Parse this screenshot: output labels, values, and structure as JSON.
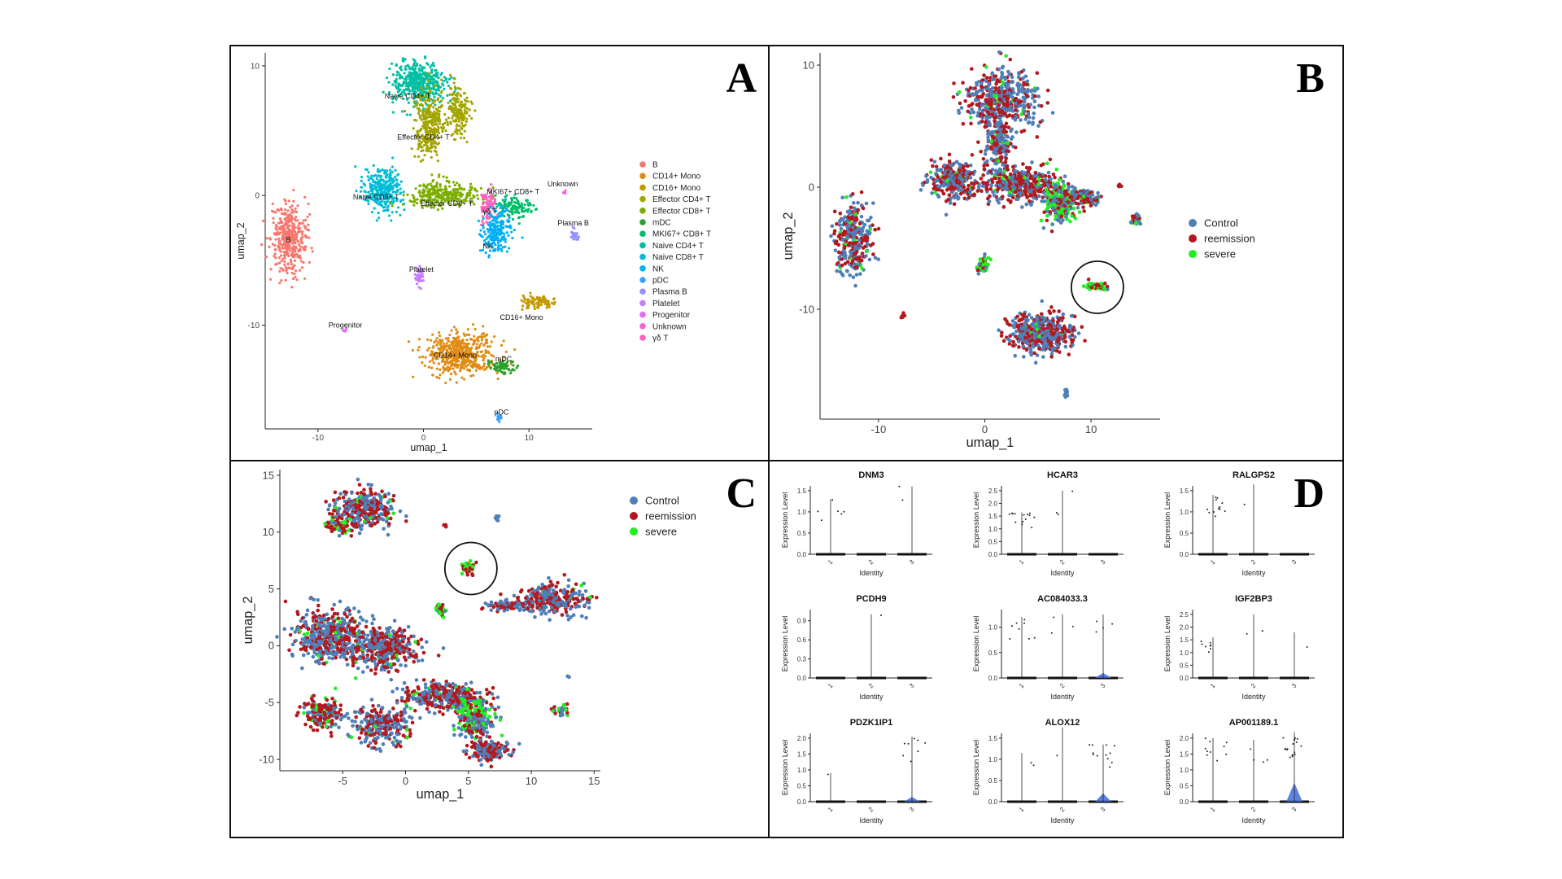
{
  "panel_letters": {
    "A": "A",
    "B": "B",
    "C": "C",
    "D": "D"
  },
  "colors": {
    "control": "#4f7fb8",
    "reemission": "#b2191e",
    "severe": "#22ee22",
    "clusters": {
      "B": "#f8766d",
      "CD14+ Mono": "#e08b14",
      "CD16+ Mono": "#c49a00",
      "Effector CD4+ T": "#a3a500",
      "Effector CD8+ T": "#7cae00",
      "mDC": "#2aa12a",
      "MKI67+ CD8+ T": "#00be67",
      "Naive CD4+ T": "#00bfa2",
      "Naive CD8+ T": "#00bcd8",
      "NK": "#00b0f6",
      "pDC": "#35a2ff",
      "Plasma B": "#9590ff",
      "Platelet": "#c77cff",
      "Progenitor": "#e76bf3",
      "Unknown": "#fa62db",
      "γδ T": "#ff62bc"
    }
  },
  "chart_data": [
    {
      "panel": "A",
      "type": "scatter",
      "xlabel": "umap_1",
      "ylabel": "umap_2",
      "xlim": [
        -15,
        16
      ],
      "ylim": [
        -18,
        11
      ],
      "xticks": [
        -10,
        0,
        10
      ],
      "yticks": [
        10,
        0,
        -10
      ],
      "legend": [
        "B",
        "CD14+ Mono",
        "CD16+ Mono",
        "Effector CD4+ T",
        "Effector CD8+ T",
        "mDC",
        "MKI67+ CD8+ T",
        "Naive CD4+ T",
        "Naive CD8+ T",
        "NK",
        "pDC",
        "Plasma B",
        "Platelet",
        "Progenitor",
        "Unknown",
        "γδ T"
      ],
      "legend_position": "right",
      "cluster_labels": [
        {
          "text": "Naive CD4+ T",
          "x": -1.5,
          "y": 7.5
        },
        {
          "text": "Effector CD4+ T",
          "x": 0,
          "y": 4.3
        },
        {
          "text": "Naive CD8+ T",
          "x": -4.5,
          "y": -0.3
        },
        {
          "text": "Effector CD8+ T",
          "x": 2.2,
          "y": -0.8
        },
        {
          "text": "MKI67+ CD8+ T",
          "x": 8.5,
          "y": 0.1
        },
        {
          "text": "γδ T",
          "x": 6.3,
          "y": -1.4
        },
        {
          "text": "Unknown",
          "x": 13.2,
          "y": 0.7
        },
        {
          "text": "Plasma B",
          "x": 14.2,
          "y": -2.3
        },
        {
          "text": "B",
          "x": -12.8,
          "y": -3.6
        },
        {
          "text": "NK",
          "x": 6.1,
          "y": -4.1
        },
        {
          "text": "Platelet",
          "x": -0.2,
          "y": -5.9
        },
        {
          "text": "Progenitor",
          "x": -7.4,
          "y": -10.2
        },
        {
          "text": "CD16+ Mono",
          "x": 9.3,
          "y": -9.6
        },
        {
          "text": "CD14+ Mono",
          "x": 3,
          "y": -12.5
        },
        {
          "text": "mDC",
          "x": 7.6,
          "y": -12.8
        },
        {
          "text": "pDC",
          "x": 7.4,
          "y": -16.9
        }
      ],
      "clusters": [
        {
          "name": "Naive CD4+ T",
          "cx": -0.5,
          "cy": 8.7,
          "rx": 2.5,
          "ry": 1.6,
          "n": 420
        },
        {
          "name": "Effector CD4+ T",
          "cx": 0.5,
          "cy": 5.6,
          "rx": 1.3,
          "ry": 2.6,
          "n": 320
        },
        {
          "name": "Effector CD4+ T",
          "cx": 3.3,
          "cy": 6.4,
          "rx": 1.1,
          "ry": 2.3,
          "n": 160
        },
        {
          "name": "Naive CD8+ T",
          "cx": -3.8,
          "cy": 0.4,
          "rx": 1.9,
          "ry": 1.6,
          "n": 300
        },
        {
          "name": "Effector CD8+ T",
          "cx": 1.8,
          "cy": 0.1,
          "rx": 3.6,
          "ry": 0.9,
          "n": 300
        },
        {
          "name": "MKI67+ CD8+ T",
          "cx": 8.5,
          "cy": -0.9,
          "rx": 1.8,
          "ry": 0.8,
          "n": 110
        },
        {
          "name": "γδ T",
          "cx": 6.2,
          "cy": -0.9,
          "rx": 0.8,
          "ry": 1.2,
          "n": 90
        },
        {
          "name": "NK",
          "cx": 6.9,
          "cy": -2.8,
          "rx": 1.4,
          "ry": 1.5,
          "n": 200
        },
        {
          "name": "B",
          "cx": -12.7,
          "cy": -3.3,
          "rx": 1.8,
          "ry": 2.6,
          "n": 380
        },
        {
          "name": "Platelet",
          "cx": -0.3,
          "cy": -6.2,
          "rx": 0.4,
          "ry": 0.8,
          "n": 40
        },
        {
          "name": "Plasma B",
          "cx": 14.3,
          "cy": -3,
          "rx": 0.4,
          "ry": 0.5,
          "n": 25
        },
        {
          "name": "Unknown",
          "cx": 13.4,
          "cy": 0.2,
          "rx": 0.2,
          "ry": 0.2,
          "n": 6
        },
        {
          "name": "Progenitor",
          "cx": -7.5,
          "cy": -10.4,
          "rx": 0.2,
          "ry": 0.2,
          "n": 6
        },
        {
          "name": "CD14+ Mono",
          "cx": 3.5,
          "cy": -12.2,
          "rx": 3.2,
          "ry": 1.6,
          "n": 520
        },
        {
          "name": "CD16+ Mono",
          "cx": 10.8,
          "cy": -8.2,
          "rx": 1.4,
          "ry": 0.5,
          "n": 90
        },
        {
          "name": "mDC",
          "cx": 7.2,
          "cy": -13.2,
          "rx": 1.3,
          "ry": 0.5,
          "n": 70
        },
        {
          "name": "pDC",
          "cx": 7.2,
          "cy": -17.2,
          "rx": 0.2,
          "ry": 0.3,
          "n": 12
        }
      ]
    },
    {
      "panel": "B",
      "type": "scatter",
      "xlabel": "umap_1",
      "ylabel": "umap_2",
      "xlim": [
        -15.5,
        16.5
      ],
      "ylim": [
        -19,
        11
      ],
      "xticks": [
        -10,
        0,
        10
      ],
      "yticks": [
        10,
        0,
        -10
      ],
      "legend": [
        "Control",
        "reemission",
        "severe"
      ],
      "legend_position": "right",
      "highlight_circle": {
        "x": 10.6,
        "y": -8.2
      },
      "clusters": [
        {
          "cx": 1.5,
          "cy": 7.2,
          "rx": 3.2,
          "ry": 2.6,
          "mix": [
            0.55,
            0.4,
            0.05
          ],
          "n": 450
        },
        {
          "cx": 1.3,
          "cy": 3.5,
          "rx": 1.2,
          "ry": 2.3,
          "mix": [
            0.55,
            0.4,
            0.05
          ],
          "n": 200
        },
        {
          "cx": -3,
          "cy": 0.5,
          "rx": 2.2,
          "ry": 1.7,
          "mix": [
            0.55,
            0.42,
            0.03
          ],
          "n": 280
        },
        {
          "cx": 3.2,
          "cy": 0.2,
          "rx": 3.2,
          "ry": 1.4,
          "mix": [
            0.4,
            0.55,
            0.05
          ],
          "n": 420
        },
        {
          "cx": 7,
          "cy": -1.2,
          "rx": 1.5,
          "ry": 1.8,
          "mix": [
            0.35,
            0.25,
            0.4
          ],
          "n": 240
        },
        {
          "cx": 9.3,
          "cy": -0.8,
          "rx": 1.6,
          "ry": 0.7,
          "mix": [
            0.45,
            0.5,
            0.05
          ],
          "n": 110
        },
        {
          "cx": -12.3,
          "cy": -4.2,
          "rx": 1.6,
          "ry": 2.8,
          "mix": [
            0.5,
            0.45,
            0.05
          ],
          "n": 320
        },
        {
          "cx": -0.2,
          "cy": -6.3,
          "rx": 0.5,
          "ry": 0.8,
          "mix": [
            0.3,
            0.3,
            0.4
          ],
          "n": 45
        },
        {
          "cx": 14.2,
          "cy": -2.7,
          "rx": 0.5,
          "ry": 0.6,
          "mix": [
            0.4,
            0.4,
            0.2
          ],
          "n": 35
        },
        {
          "cx": 10.5,
          "cy": -8.1,
          "rx": 1,
          "ry": 0.4,
          "mix": [
            0.05,
            0.35,
            0.6
          ],
          "n": 60
        },
        {
          "cx": 5.3,
          "cy": -12,
          "rx": 3,
          "ry": 1.6,
          "mix": [
            0.55,
            0.42,
            0.03
          ],
          "n": 480
        },
        {
          "cx": -7.7,
          "cy": -10.5,
          "rx": 0.15,
          "ry": 0.2,
          "mix": [
            0.1,
            0.9,
            0
          ],
          "n": 5
        },
        {
          "cx": 7.6,
          "cy": -16.8,
          "rx": 0.2,
          "ry": 0.5,
          "mix": [
            1,
            0,
            0
          ],
          "n": 10
        },
        {
          "cx": 12.6,
          "cy": 0.1,
          "rx": 0.15,
          "ry": 0.15,
          "mix": [
            0,
            1,
            0
          ],
          "n": 4
        }
      ]
    },
    {
      "panel": "C",
      "type": "scatter",
      "xlabel": "umap_1",
      "ylabel": "umap_2",
      "xlim": [
        -10,
        15.5
      ],
      "ylim": [
        -11,
        15.5
      ],
      "xticks": [
        -5,
        0,
        5,
        10,
        15
      ],
      "yticks": [
        15,
        10,
        5,
        0,
        -5,
        -10
      ],
      "legend": [
        "Control",
        "reemission",
        "severe"
      ],
      "legend_position": "right",
      "highlight_circle": {
        "x": 5.2,
        "y": 6.8
      },
      "clusters": [
        {
          "cx": -3.3,
          "cy": 12,
          "rx": 2.4,
          "ry": 1.7,
          "mix": [
            0.5,
            0.45,
            0.05
          ],
          "n": 300
        },
        {
          "cx": -5.3,
          "cy": 10.6,
          "rx": 1,
          "ry": 0.8,
          "mix": [
            0.1,
            0.6,
            0.3
          ],
          "n": 70
        },
        {
          "cx": 11.5,
          "cy": 4.1,
          "rx": 2.8,
          "ry": 1.3,
          "mix": [
            0.5,
            0.48,
            0.02
          ],
          "n": 300
        },
        {
          "cx": 8,
          "cy": 3.5,
          "rx": 1.6,
          "ry": 0.4,
          "mix": [
            0.45,
            0.55,
            0
          ],
          "n": 70
        },
        {
          "cx": 5,
          "cy": 6.8,
          "rx": 0.5,
          "ry": 0.5,
          "mix": [
            0.05,
            0.3,
            0.65
          ],
          "n": 45
        },
        {
          "cx": 2.8,
          "cy": 3.2,
          "rx": 0.4,
          "ry": 0.6,
          "mix": [
            0.3,
            0.3,
            0.4
          ],
          "n": 35
        },
        {
          "cx": -5.8,
          "cy": 0.8,
          "rx": 3,
          "ry": 2.3,
          "mix": [
            0.5,
            0.45,
            0.05
          ],
          "n": 500
        },
        {
          "cx": -1.5,
          "cy": -0.2,
          "rx": 2.5,
          "ry": 1.8,
          "mix": [
            0.45,
            0.5,
            0.05
          ],
          "n": 350
        },
        {
          "cx": 3,
          "cy": -4.5,
          "rx": 3.2,
          "ry": 1.2,
          "mix": [
            0.45,
            0.5,
            0.05
          ],
          "n": 350
        },
        {
          "cx": -6.8,
          "cy": -5.9,
          "rx": 1.5,
          "ry": 1.4,
          "mix": [
            0.2,
            0.65,
            0.15
          ],
          "n": 160
        },
        {
          "cx": -2,
          "cy": -7,
          "rx": 2.3,
          "ry": 1.8,
          "mix": [
            0.5,
            0.45,
            0.05
          ],
          "n": 260
        },
        {
          "cx": 5.5,
          "cy": -6.5,
          "rx": 1.4,
          "ry": 1.8,
          "mix": [
            0.35,
            0.25,
            0.4
          ],
          "n": 250
        },
        {
          "cx": 6.6,
          "cy": -9.2,
          "rx": 1.6,
          "ry": 0.9,
          "mix": [
            0.45,
            0.5,
            0.05
          ],
          "n": 160
        },
        {
          "cx": 12.5,
          "cy": -5.8,
          "rx": 0.5,
          "ry": 0.6,
          "mix": [
            0.3,
            0.4,
            0.3
          ],
          "n": 30
        },
        {
          "cx": 3.2,
          "cy": 10.6,
          "rx": 0.15,
          "ry": 0.15,
          "mix": [
            0,
            1,
            0
          ],
          "n": 4
        },
        {
          "cx": 7.3,
          "cy": 11.2,
          "rx": 0.2,
          "ry": 0.3,
          "mix": [
            1,
            0,
            0
          ],
          "n": 8
        },
        {
          "cx": 13,
          "cy": -2.8,
          "rx": 0.15,
          "ry": 0.15,
          "mix": [
            1,
            0,
            0
          ],
          "n": 3
        }
      ]
    },
    {
      "panel": "D",
      "type": "violin",
      "xlabel": "Identity",
      "ylabel": "Expression Level",
      "categories": [
        "1",
        "2",
        "3"
      ],
      "subplots": [
        {
          "gene": "DNM3",
          "ymax": 1.5,
          "yticks": [
            0.0,
            0.5,
            1.0,
            1.5
          ],
          "max": [
            1.3,
            0,
            1.6
          ],
          "n_nonzero": [
            6,
            0,
            2
          ],
          "violin3": 0
        },
        {
          "gene": "HCAR3",
          "ymax": 2.5,
          "yticks": [
            0.0,
            0.5,
            1.0,
            1.5,
            2.0,
            2.5
          ],
          "max": [
            1.65,
            2.5,
            0
          ],
          "n_nonzero": [
            14,
            3,
            0
          ],
          "violin3": 0
        },
        {
          "gene": "RALGPS2",
          "ymax": 1.5,
          "yticks": [
            0.0,
            0.5,
            1.0,
            1.5
          ],
          "max": [
            1.4,
            1.65,
            0
          ],
          "n_nonzero": [
            12,
            1,
            0
          ],
          "violin3": 0
        },
        {
          "gene": "PCDH9",
          "ymax": 1.0,
          "yticks": [
            0.0,
            0.3,
            0.6,
            0.9
          ],
          "max": [
            0,
            1.0,
            0
          ],
          "n_nonzero": [
            0,
            1,
            0
          ],
          "violin3": 0
        },
        {
          "gene": "AC084033.3",
          "ymax": 1.25,
          "yticks": [
            0.0,
            0.5,
            1.0
          ],
          "max": [
            1.2,
            1.25,
            1.25
          ],
          "n_nonzero": [
            8,
            3,
            4
          ],
          "violin3": 0.1
        },
        {
          "gene": "IGF2BP3",
          "ymax": 2.5,
          "yticks": [
            0.0,
            0.5,
            1.0,
            1.5,
            2.0,
            2.5
          ],
          "max": [
            1.6,
            2.5,
            1.8
          ],
          "n_nonzero": [
            8,
            2,
            1
          ],
          "violin3": 0
        },
        {
          "gene": "PDZK1IP1",
          "ymax": 2.0,
          "yticks": [
            0.0,
            0.5,
            1.0,
            1.5,
            2.0
          ],
          "max": [
            0.9,
            0,
            2.05
          ],
          "n_nonzero": [
            1,
            0,
            8
          ],
          "violin3": 0.15
        },
        {
          "gene": "ALOX12",
          "ymax": 1.5,
          "yticks": [
            0.0,
            0.5,
            1.0,
            1.5
          ],
          "max": [
            1.15,
            1.75,
            1.35
          ],
          "n_nonzero": [
            2,
            1,
            12
          ],
          "violin3": 0.2
        },
        {
          "gene": "AP001189.1",
          "ymax": 2.0,
          "yticks": [
            0.0,
            0.5,
            1.0,
            1.5,
            2.0
          ],
          "max": [
            2.0,
            1.95,
            2.2
          ],
          "n_nonzero": [
            10,
            4,
            18
          ],
          "violin3": 0.6
        }
      ]
    }
  ]
}
